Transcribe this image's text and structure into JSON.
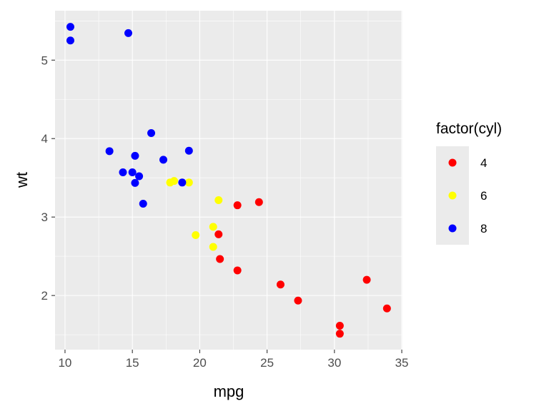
{
  "chart_data": {
    "type": "scatter",
    "title": "",
    "xlabel": "mpg",
    "ylabel": "wt",
    "xlim": [
      9.26,
      35.05
    ],
    "ylim": [
      1.31,
      5.63
    ],
    "xticks": [
      10,
      15,
      20,
      25,
      30,
      35
    ],
    "yticks": [
      2,
      3,
      4,
      5
    ],
    "grid": true,
    "legend": {
      "title": "factor(cyl)",
      "placement": "right",
      "entries": [
        {
          "label": "4",
          "color": "#FF0000"
        },
        {
          "label": "6",
          "color": "#FFFF00"
        },
        {
          "label": "8",
          "color": "#0000FF"
        }
      ]
    },
    "series": [
      {
        "name": "4",
        "color": "#FF0000",
        "points": [
          [
            22.8,
            2.32
          ],
          [
            24.4,
            3.19
          ],
          [
            22.8,
            3.15
          ],
          [
            32.4,
            2.2
          ],
          [
            30.4,
            1.615
          ],
          [
            33.9,
            1.835
          ],
          [
            21.5,
            2.465
          ],
          [
            27.3,
            1.935
          ],
          [
            26.0,
            2.14
          ],
          [
            30.4,
            1.513
          ],
          [
            21.4,
            2.78
          ]
        ]
      },
      {
        "name": "6",
        "color": "#FFFF00",
        "points": [
          [
            21.0,
            2.62
          ],
          [
            21.0,
            2.875
          ],
          [
            21.4,
            3.215
          ],
          [
            18.1,
            3.46
          ],
          [
            19.2,
            3.44
          ],
          [
            17.8,
            3.44
          ],
          [
            19.7,
            2.77
          ]
        ]
      },
      {
        "name": "8",
        "color": "#0000FF",
        "points": [
          [
            18.7,
            3.44
          ],
          [
            14.3,
            3.57
          ],
          [
            16.4,
            4.07
          ],
          [
            17.3,
            3.73
          ],
          [
            15.2,
            3.78
          ],
          [
            10.4,
            5.25
          ],
          [
            10.4,
            5.424
          ],
          [
            14.7,
            5.345
          ],
          [
            15.5,
            3.52
          ],
          [
            15.2,
            3.435
          ],
          [
            13.3,
            3.84
          ],
          [
            19.2,
            3.845
          ],
          [
            15.8,
            3.17
          ],
          [
            15.0,
            3.57
          ]
        ]
      }
    ]
  }
}
